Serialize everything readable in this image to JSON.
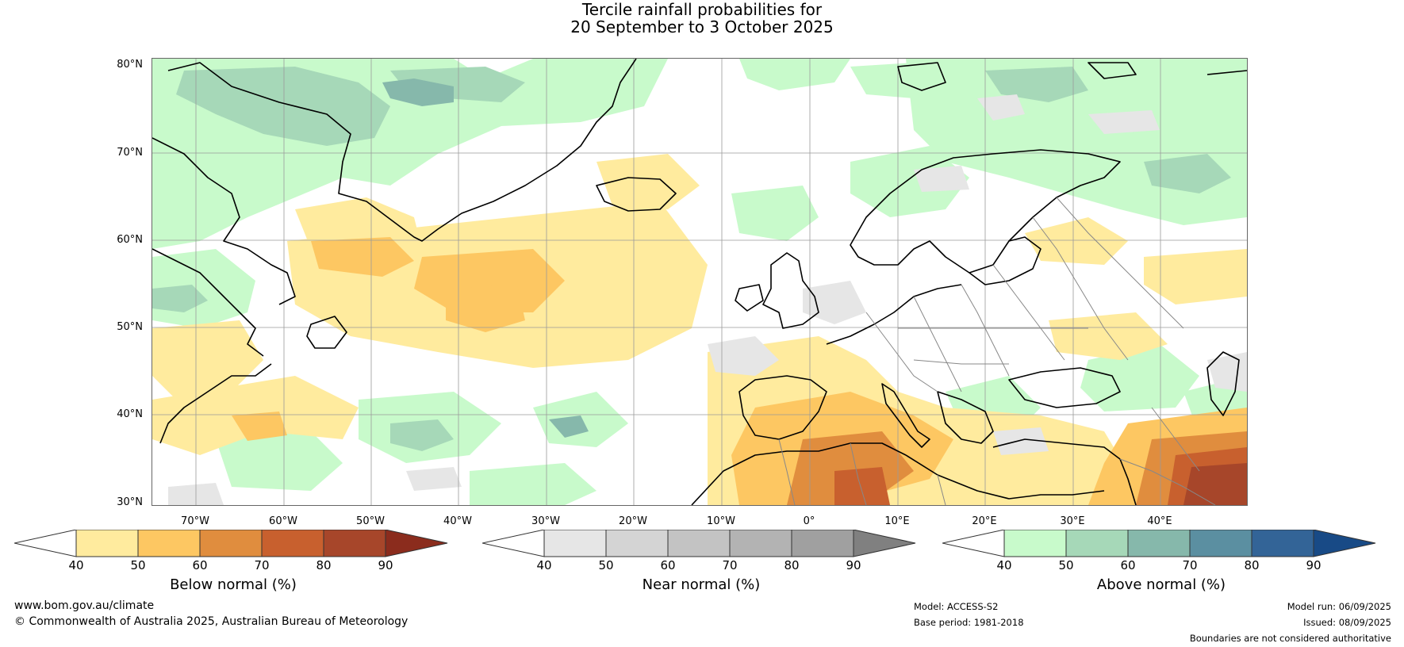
{
  "title": {
    "line1": "Tercile rainfall probabilities for",
    "line2": "20 September to 3 October 2025"
  },
  "map": {
    "lat_labels": [
      "80°N",
      "70°N",
      "60°N",
      "50°N",
      "40°N",
      "30°N"
    ],
    "lon_labels": [
      "70°W",
      "60°W",
      "50°W",
      "40°W",
      "30°W",
      "20°W",
      "10°W",
      "0°",
      "10°E",
      "20°E",
      "30°E",
      "40°E"
    ],
    "lat_range": [
      30,
      80
    ],
    "lon_range": [
      -80,
      45
    ],
    "grid": true
  },
  "colorbars": [
    {
      "title": "Below normal (%)",
      "ticks": [
        "40",
        "50",
        "60",
        "70",
        "80",
        "90"
      ],
      "colors": [
        "#ffffff",
        "#ffeb9e",
        "#fdc762",
        "#e08d3e",
        "#c8602e",
        "#a7462a",
        "#8b2c1d"
      ]
    },
    {
      "title": "Near normal (%)",
      "ticks": [
        "40",
        "50",
        "60",
        "70",
        "80",
        "90"
      ],
      "colors": [
        "#ffffff",
        "#e6e6e6",
        "#d4d4d4",
        "#c3c3c3",
        "#b3b3b3",
        "#a0a0a0",
        "#808080"
      ]
    },
    {
      "title": "Above normal (%)",
      "ticks": [
        "40",
        "50",
        "60",
        "70",
        "80",
        "90"
      ],
      "colors": [
        "#ffffff",
        "#c8facb",
        "#a6d8b8",
        "#86b8ab",
        "#5b8fa1",
        "#336497",
        "#184a86"
      ]
    }
  ],
  "footer": {
    "website": "www.bom.gov.au/climate",
    "copyright": "© Commonwealth of Australia 2025, Australian Bureau of Meteorology",
    "model": "Model: ACCESS-S2",
    "base_period": "Base period: 1981-2018",
    "model_run": "Model run: 06/09/2025",
    "issued": "Issued: 08/09/2025",
    "disclaimer": "Boundaries are not considered authoritative"
  }
}
